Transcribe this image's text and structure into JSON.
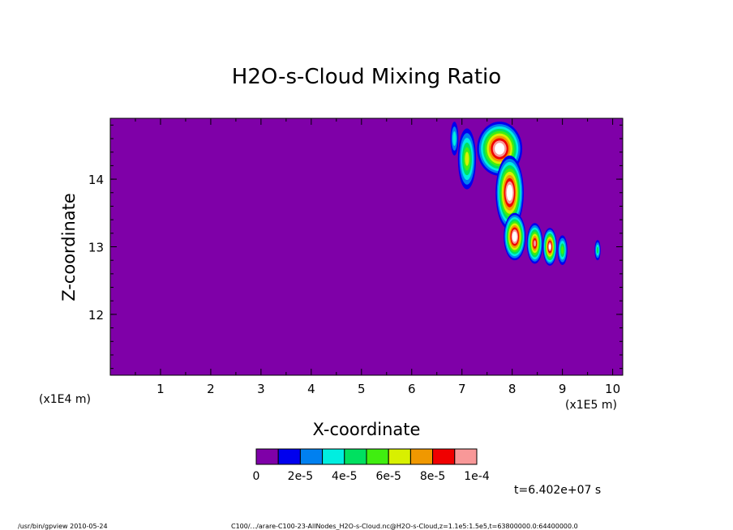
{
  "chart_data": {
    "type": "heatmap",
    "title": "H2O-s-Cloud Mixing Ratio",
    "xlabel": "X-coordinate",
    "ylabel": "Z-coordinate",
    "x_unit_left": "(x1E4 m)",
    "x_unit_right": "(x1E5 m)",
    "x_ticks": [
      1,
      2,
      3,
      4,
      5,
      6,
      7,
      8,
      9,
      10
    ],
    "y_ticks": [
      12,
      13,
      14
    ],
    "xlim": [
      0,
      10.2
    ],
    "ylim": [
      11.1,
      14.9
    ],
    "background_value": 0,
    "colorbar": {
      "colors": [
        "#7f00a8",
        "#0000ee",
        "#0080f0",
        "#00eee0",
        "#00e060",
        "#40ee10",
        "#d8f000",
        "#f09800",
        "#f00000",
        "#f89898"
      ],
      "tick_labels": [
        "0",
        "2e-5",
        "4e-5",
        "6e-5",
        "8e-5",
        "1e-4"
      ],
      "range": [
        0,
        0.0001
      ]
    },
    "cloud_regions": [
      {
        "x": 7.75,
        "z": 14.45,
        "rx": 0.45,
        "rz": 0.4,
        "value": 0.00012
      },
      {
        "x": 7.95,
        "z": 13.8,
        "rx": 0.28,
        "rz": 0.55,
        "value": 0.00011
      },
      {
        "x": 8.05,
        "z": 13.15,
        "rx": 0.22,
        "rz": 0.35,
        "value": 0.000105
      },
      {
        "x": 8.45,
        "z": 13.05,
        "rx": 0.16,
        "rz": 0.3,
        "value": 9e-05
      },
      {
        "x": 8.75,
        "z": 13.0,
        "rx": 0.14,
        "rz": 0.28,
        "value": 0.0001
      },
      {
        "x": 9.0,
        "z": 12.95,
        "rx": 0.1,
        "rz": 0.22,
        "value": 5e-05
      },
      {
        "x": 7.1,
        "z": 14.3,
        "rx": 0.18,
        "rz": 0.45,
        "value": 6e-05
      },
      {
        "x": 6.85,
        "z": 14.6,
        "rx": 0.08,
        "rz": 0.25,
        "value": 3e-05
      },
      {
        "x": 9.7,
        "z": 12.95,
        "rx": 0.06,
        "rz": 0.15,
        "value": 4e-05
      }
    ],
    "time_label": "t=6.402e+07 s",
    "footer_left": "/usr/bin/gpview   2010-05-24",
    "footer_right": "C100/.../arare-C100-23-AllNodes_H2O-s-Cloud.nc@H2O-s-Cloud,z=1.1e5:1.5e5,t=63800000.0:64400000.0"
  }
}
